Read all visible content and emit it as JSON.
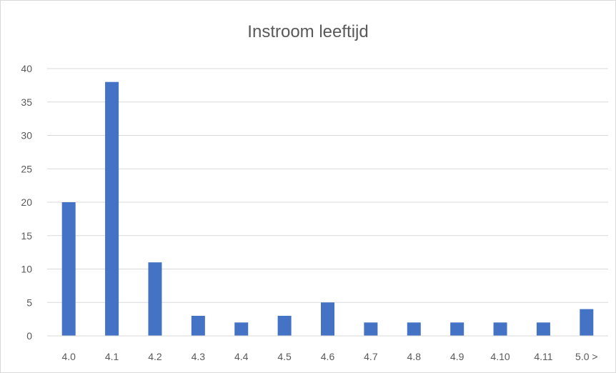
{
  "chart_data": {
    "type": "bar",
    "title": "Instroom leeftijd",
    "xlabel": "",
    "ylabel": "",
    "categories": [
      "4.0",
      "4.1",
      "4.2",
      "4.3",
      "4.4",
      "4.5",
      "4.6",
      "4.7",
      "4.8",
      "4.9",
      "4.10",
      "4.11",
      "5.0 >"
    ],
    "values": [
      20,
      38,
      11,
      3,
      2,
      3,
      5,
      2,
      2,
      2,
      2,
      2,
      4
    ],
    "ylim": [
      0,
      40
    ],
    "yticks": [
      0,
      5,
      10,
      15,
      20,
      25,
      30,
      35,
      40
    ],
    "grid": true,
    "legend": "none",
    "bar_color": "#4472c4",
    "grid_color": "#d9d9d9",
    "axis_color": "#d9d9d9",
    "text_color": "#595959"
  }
}
